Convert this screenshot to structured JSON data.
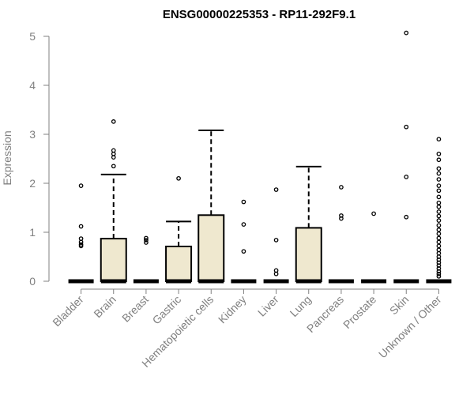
{
  "chart_data": {
    "type": "boxplot",
    "title": "ENSG00000225353 - RP11-292F9.1",
    "ylabel": "Expression",
    "xlabel": "",
    "ylim": [
      0,
      5.1
    ],
    "yticks": [
      0,
      1,
      2,
      3,
      4,
      5
    ],
    "grid": false,
    "colors": {
      "box_fill": "#efe8cf",
      "axis": "#808080",
      "title": "#000000",
      "stroke": "#000000"
    },
    "categories": [
      "Bladder",
      "Brain",
      "Breast",
      "Gastric",
      "Hematopoietic cells",
      "Kidney",
      "Liver",
      "Lung",
      "Pancreas",
      "Prostate",
      "Skin",
      "Unknown / Other"
    ],
    "boxes": [
      {
        "category": "Bladder",
        "q1": 0,
        "median": 0,
        "q3": 0,
        "whisker_high": 0,
        "outliers": [
          1.95,
          1.12,
          0.87,
          0.8,
          0.75,
          0.72
        ]
      },
      {
        "category": "Brain",
        "q1": 0,
        "median": 0,
        "q3": 0.87,
        "whisker_high": 2.18,
        "outliers": [
          3.26,
          2.67,
          2.6,
          2.53,
          2.35
        ]
      },
      {
        "category": "Breast",
        "q1": 0,
        "median": 0,
        "q3": 0,
        "whisker_high": 0,
        "outliers": [
          0.88,
          0.84,
          0.79
        ]
      },
      {
        "category": "Gastric",
        "q1": 0,
        "median": 0,
        "q3": 0.71,
        "whisker_high": 1.22,
        "outliers": [
          2.1
        ]
      },
      {
        "category": "Hematopoietic cells",
        "q1": 0,
        "median": 0,
        "q3": 1.35,
        "whisker_high": 3.08,
        "outliers": []
      },
      {
        "category": "Kidney",
        "q1": 0,
        "median": 0,
        "q3": 0,
        "whisker_high": 0,
        "outliers": [
          1.62,
          1.16,
          0.61
        ]
      },
      {
        "category": "Liver",
        "q1": 0,
        "median": 0,
        "q3": 0,
        "whisker_high": 0,
        "outliers": [
          1.87,
          0.84,
          0.22,
          0.15
        ]
      },
      {
        "category": "Lung",
        "q1": 0,
        "median": 0,
        "q3": 1.09,
        "whisker_high": 2.34,
        "outliers": []
      },
      {
        "category": "Pancreas",
        "q1": 0,
        "median": 0,
        "q3": 0,
        "whisker_high": 0,
        "outliers": [
          1.92,
          1.34,
          1.28
        ]
      },
      {
        "category": "Prostate",
        "q1": 0,
        "median": 0,
        "q3": 0,
        "whisker_high": 0,
        "outliers": [
          1.38
        ]
      },
      {
        "category": "Skin",
        "q1": 0,
        "median": 0,
        "q3": 0,
        "whisker_high": 0,
        "outliers": [
          5.07,
          3.15,
          2.13,
          1.31
        ]
      },
      {
        "category": "Unknown / Other",
        "q1": 0,
        "median": 0,
        "q3": 0,
        "whisker_high": 0,
        "outliers": [
          2.9,
          2.6,
          2.48,
          2.3,
          2.2,
          2.08,
          1.95,
          1.85,
          1.72,
          1.6,
          1.52,
          1.42,
          1.33,
          1.24,
          1.14,
          1.05,
          0.97,
          0.88,
          0.8,
          0.72,
          0.64,
          0.57,
          0.5,
          0.44,
          0.38,
          0.32,
          0.26,
          0.2,
          0.15,
          0.1
        ]
      }
    ]
  }
}
